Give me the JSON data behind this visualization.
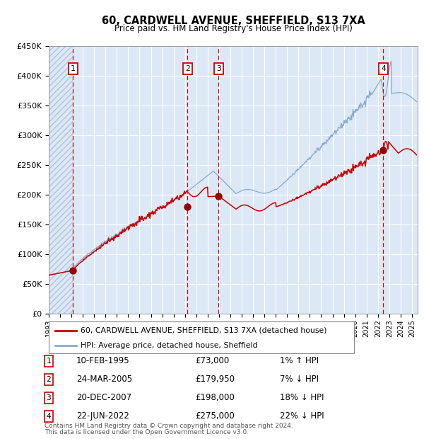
{
  "title": "60, CARDWELL AVENUE, SHEFFIELD, S13 7XA",
  "subtitle": "Price paid vs. HM Land Registry's House Price Index (HPI)",
  "bg_color": "#dce8f5",
  "grid_color": "#ffffff",
  "red_line_color": "#cc0000",
  "blue_line_color": "#88aacc",
  "sale_dot_color": "#990000",
  "vline_color": "#cc0000",
  "ylabel_ticks": [
    "£0",
    "£50K",
    "£100K",
    "£150K",
    "£200K",
    "£250K",
    "£300K",
    "£350K",
    "£400K",
    "£450K"
  ],
  "ytick_values": [
    0,
    50000,
    100000,
    150000,
    200000,
    250000,
    300000,
    350000,
    400000,
    450000
  ],
  "sales": [
    {
      "num": 1,
      "date": "10-FEB-1995",
      "price": 73000,
      "price_str": "£73,000",
      "year": 1995.12,
      "hpi_pct": "1% ↑ HPI"
    },
    {
      "num": 2,
      "date": "24-MAR-2005",
      "price": 179950,
      "price_str": "£179,950",
      "year": 2005.23,
      "hpi_pct": "7% ↓ HPI"
    },
    {
      "num": 3,
      "date": "20-DEC-2007",
      "price": 198000,
      "price_str": "£198,000",
      "year": 2007.97,
      "hpi_pct": "18% ↓ HPI"
    },
    {
      "num": 4,
      "date": "22-JUN-2022",
      "price": 275000,
      "price_str": "£275,000",
      "year": 2022.48,
      "hpi_pct": "22% ↓ HPI"
    }
  ],
  "xmin": 1993.0,
  "xmax": 2025.5,
  "ymin": 0,
  "ymax": 450000,
  "hatch_xmax": 1995.12,
  "legend_entries": [
    "60, CARDWELL AVENUE, SHEFFIELD, S13 7XA (detached house)",
    "HPI: Average price, detached house, Sheffield"
  ],
  "footer_line1": "Contains HM Land Registry data © Crown copyright and database right 2024.",
  "footer_line2": "This data is licensed under the Open Government Licence v3.0.",
  "xtick_years": [
    1993,
    1994,
    1995,
    1996,
    1997,
    1998,
    1999,
    2000,
    2001,
    2002,
    2003,
    2004,
    2005,
    2006,
    2007,
    2008,
    2009,
    2010,
    2011,
    2012,
    2013,
    2014,
    2015,
    2016,
    2017,
    2018,
    2019,
    2020,
    2021,
    2022,
    2023,
    2024,
    2025
  ]
}
